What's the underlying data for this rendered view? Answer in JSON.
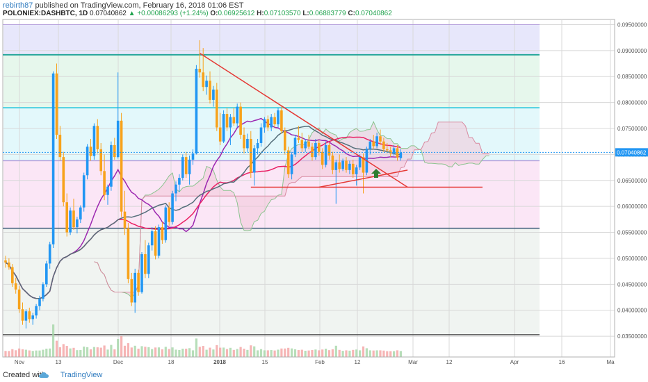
{
  "header": {
    "author": "rebirth87",
    "published_text": "published on TradingView.com, February 16, 2018 01:06 EST",
    "symbol": "POLONIEX:DASHBTC, 1D",
    "last": "0.07040862",
    "change": "▲ +0.00086293 (+1.24%)",
    "o_label": "O:",
    "o_value": "0.06925612",
    "h_label": "H:",
    "h_value": "0.07103570",
    "l_label": "L:",
    "l_value": "0.06883779",
    "c_label": "C:",
    "c_value": "0.07040862"
  },
  "footer": {
    "created_with": "Created with",
    "brand": "TradingView"
  },
  "colors": {
    "up": "#2196f3",
    "down": "#f7a21b",
    "trend": "#e53935",
    "teal_line": "#26a69a",
    "cyan_line": "#4dd0e1",
    "purple_line": "#b39ddb",
    "ma_purple": "#9c27b0",
    "ma_magenta": "#e91e63",
    "ma_slate": "#546e7a"
  },
  "chart_data": {
    "type": "candlestick",
    "price_axis": {
      "min": 0.031,
      "max": 0.096,
      "ticks": [
        "0.09500000",
        "0.09000000",
        "0.08500000",
        "0.08000000",
        "0.07500000",
        "0.07000000",
        "0.06500000",
        "0.06000000",
        "0.05500000",
        "0.05000000",
        "0.04500000",
        "0.04000000",
        "0.03500000"
      ],
      "last_price_label": "0.07040862"
    },
    "time_axis": {
      "labels": [
        "Nov",
        "13",
        "Dec",
        "18",
        "2018",
        "15",
        "Feb",
        "12",
        "Mar",
        "12",
        "Apr",
        "16",
        "Ma"
      ]
    },
    "horizontal_levels": [
      0.095,
      0.0892,
      0.079,
      0.0688,
      0.0558,
      0.0353
    ],
    "support_line": {
      "price": 0.0637,
      "from_day": 72,
      "to_day": 140
    },
    "trend_lines": [
      {
        "from_day": 57,
        "from_price": 0.0895,
        "to_day": 118,
        "to_price": 0.0637
      },
      {
        "from_day": 92,
        "from_price": 0.0637,
        "to_day": 118,
        "to_price": 0.067
      }
    ],
    "candles": [
      [
        0.0496,
        0.0505,
        0.0482,
        0.0492
      ],
      [
        0.0492,
        0.05,
        0.0478,
        0.0483
      ],
      [
        0.0483,
        0.0489,
        0.0445,
        0.0452
      ],
      [
        0.0452,
        0.0463,
        0.0432,
        0.044
      ],
      [
        0.044,
        0.0447,
        0.0395,
        0.0402
      ],
      [
        0.0402,
        0.0415,
        0.0372,
        0.038
      ],
      [
        0.038,
        0.0402,
        0.0365,
        0.0398
      ],
      [
        0.0398,
        0.0405,
        0.0376,
        0.0383
      ],
      [
        0.0383,
        0.0395,
        0.0372,
        0.039
      ],
      [
        0.039,
        0.0412,
        0.0384,
        0.0408
      ],
      [
        0.0408,
        0.0428,
        0.04,
        0.0422
      ],
      [
        0.0422,
        0.0454,
        0.0417,
        0.045
      ],
      [
        0.045,
        0.0495,
        0.0445,
        0.049
      ],
      [
        0.049,
        0.0532,
        0.048,
        0.0527
      ],
      [
        0.0527,
        0.086,
        0.052,
        0.0856
      ],
      [
        0.0856,
        0.0875,
        0.073,
        0.0738
      ],
      [
        0.0738,
        0.0755,
        0.0688,
        0.0695
      ],
      [
        0.0695,
        0.0705,
        0.06,
        0.0608
      ],
      [
        0.0608,
        0.0625,
        0.0542,
        0.055
      ],
      [
        0.055,
        0.0598,
        0.0545,
        0.0592
      ],
      [
        0.0592,
        0.0615,
        0.0555,
        0.056
      ],
      [
        0.056,
        0.058,
        0.0548,
        0.0575
      ],
      [
        0.0575,
        0.0602,
        0.0568,
        0.0598
      ],
      [
        0.0598,
        0.0665,
        0.059,
        0.066
      ],
      [
        0.066,
        0.072,
        0.0652,
        0.0715
      ],
      [
        0.0715,
        0.073,
        0.0688,
        0.0697
      ],
      [
        0.0697,
        0.076,
        0.069,
        0.0755
      ],
      [
        0.0755,
        0.0768,
        0.0702,
        0.071
      ],
      [
        0.071,
        0.0722,
        0.066,
        0.0668
      ],
      [
        0.0668,
        0.07,
        0.0612,
        0.0622
      ],
      [
        0.0622,
        0.0642,
        0.0603,
        0.0638
      ],
      [
        0.0638,
        0.0725,
        0.063,
        0.0718
      ],
      [
        0.0718,
        0.0732,
        0.069,
        0.0695
      ],
      [
        0.0695,
        0.0858,
        0.0692,
        0.0765
      ],
      [
        0.0765,
        0.078,
        0.058,
        0.059
      ],
      [
        0.059,
        0.063,
        0.0545,
        0.0558
      ],
      [
        0.0558,
        0.0568,
        0.0452,
        0.046
      ],
      [
        0.046,
        0.0472,
        0.0408,
        0.0415
      ],
      [
        0.0415,
        0.048,
        0.0395,
        0.0472
      ],
      [
        0.0472,
        0.0478,
        0.0428,
        0.0435
      ],
      [
        0.0435,
        0.0512,
        0.0432,
        0.0508
      ],
      [
        0.0508,
        0.0535,
        0.0462,
        0.047
      ],
      [
        0.047,
        0.053,
        0.0462,
        0.0525
      ],
      [
        0.0525,
        0.056,
        0.0515,
        0.0552
      ],
      [
        0.0552,
        0.0562,
        0.0498,
        0.0505
      ],
      [
        0.0505,
        0.0565,
        0.05,
        0.056
      ],
      [
        0.056,
        0.057,
        0.0528,
        0.0535
      ],
      [
        0.0535,
        0.0602,
        0.053,
        0.0598
      ],
      [
        0.0598,
        0.0608,
        0.0562,
        0.057
      ],
      [
        0.057,
        0.063,
        0.0565,
        0.0625
      ],
      [
        0.0625,
        0.0648,
        0.061,
        0.0642
      ],
      [
        0.0642,
        0.0662,
        0.0628,
        0.0655
      ],
      [
        0.0655,
        0.07,
        0.065,
        0.0695
      ],
      [
        0.0695,
        0.0705,
        0.0655,
        0.0662
      ],
      [
        0.0662,
        0.0698,
        0.0642,
        0.069
      ],
      [
        0.069,
        0.071,
        0.068,
        0.0702
      ],
      [
        0.0702,
        0.0872,
        0.07,
        0.0865
      ],
      [
        0.0865,
        0.092,
        0.0848,
        0.0858
      ],
      [
        0.0858,
        0.0905,
        0.0822,
        0.083
      ],
      [
        0.083,
        0.0852,
        0.0815,
        0.0842
      ],
      [
        0.0842,
        0.086,
        0.0798,
        0.0805
      ],
      [
        0.0805,
        0.0832,
        0.0792,
        0.0825
      ],
      [
        0.0825,
        0.0838,
        0.0745,
        0.0752
      ],
      [
        0.0752,
        0.078,
        0.0718,
        0.0725
      ],
      [
        0.0725,
        0.0785,
        0.0722,
        0.0778
      ],
      [
        0.0778,
        0.079,
        0.0745,
        0.0752
      ],
      [
        0.0752,
        0.0778,
        0.0718,
        0.0772
      ],
      [
        0.0772,
        0.079,
        0.0755,
        0.076
      ],
      [
        0.076,
        0.0798,
        0.0752,
        0.0792
      ],
      [
        0.0792,
        0.08,
        0.073,
        0.0738
      ],
      [
        0.0738,
        0.0752,
        0.0702,
        0.0712
      ],
      [
        0.0712,
        0.074,
        0.0705,
        0.073
      ],
      [
        0.073,
        0.0745,
        0.0655,
        0.0665
      ],
      [
        0.0665,
        0.0718,
        0.064,
        0.0712
      ],
      [
        0.0712,
        0.073,
        0.07,
        0.0722
      ],
      [
        0.0722,
        0.076,
        0.0715,
        0.0752
      ],
      [
        0.0752,
        0.0772,
        0.0742,
        0.0768
      ],
      [
        0.0768,
        0.0775,
        0.0745,
        0.0752
      ],
      [
        0.0752,
        0.0778,
        0.0745,
        0.0772
      ],
      [
        0.0772,
        0.078,
        0.0752,
        0.0758
      ],
      [
        0.0758,
        0.079,
        0.0752,
        0.0785
      ],
      [
        0.0785,
        0.0792,
        0.074,
        0.0745
      ],
      [
        0.0745,
        0.0752,
        0.07,
        0.0708
      ],
      [
        0.0708,
        0.0715,
        0.0655,
        0.0662
      ],
      [
        0.0662,
        0.0705,
        0.0652,
        0.07
      ],
      [
        0.07,
        0.0738,
        0.0695,
        0.0732
      ],
      [
        0.0732,
        0.0755,
        0.0722,
        0.0728
      ],
      [
        0.0728,
        0.0742,
        0.0705,
        0.0712
      ],
      [
        0.0712,
        0.073,
        0.0705,
        0.0725
      ],
      [
        0.0725,
        0.0738,
        0.071,
        0.0715
      ],
      [
        0.0715,
        0.0722,
        0.0688,
        0.0695
      ],
      [
        0.0695,
        0.073,
        0.069,
        0.0722
      ],
      [
        0.0722,
        0.0728,
        0.0698,
        0.0705
      ],
      [
        0.0705,
        0.0712,
        0.0672,
        0.068
      ],
      [
        0.068,
        0.0725,
        0.0675,
        0.0718
      ],
      [
        0.0718,
        0.0722,
        0.069,
        0.0698
      ],
      [
        0.0698,
        0.0705,
        0.0662,
        0.067
      ],
      [
        0.067,
        0.069,
        0.0605,
        0.0685
      ],
      [
        0.0685,
        0.07,
        0.0665,
        0.0672
      ],
      [
        0.0672,
        0.0692,
        0.0668,
        0.0688
      ],
      [
        0.0688,
        0.0695,
        0.0665,
        0.067
      ],
      [
        0.067,
        0.0688,
        0.0662,
        0.0682
      ],
      [
        0.0682,
        0.069,
        0.0655,
        0.0662
      ],
      [
        0.0662,
        0.068,
        0.064,
        0.0675
      ],
      [
        0.0675,
        0.07,
        0.067,
        0.0695
      ],
      [
        0.0695,
        0.0702,
        0.0625,
        0.0665
      ],
      [
        0.0665,
        0.0715,
        0.066,
        0.071
      ],
      [
        0.071,
        0.073,
        0.07,
        0.0725
      ],
      [
        0.0725,
        0.0738,
        0.071,
        0.0716
      ],
      [
        0.0716,
        0.0742,
        0.0712,
        0.0735
      ],
      [
        0.0735,
        0.0748,
        0.0718,
        0.0725
      ],
      [
        0.0725,
        0.0732,
        0.0705,
        0.071
      ],
      [
        0.071,
        0.0722,
        0.0702,
        0.0708
      ],
      [
        0.0708,
        0.0715,
        0.0695,
        0.0702
      ],
      [
        0.0702,
        0.0718,
        0.0698,
        0.0712
      ],
      [
        0.0712,
        0.0718,
        0.0688,
        0.0694
      ],
      [
        0.0693,
        0.071,
        0.0688,
        0.0704
      ]
    ]
  }
}
